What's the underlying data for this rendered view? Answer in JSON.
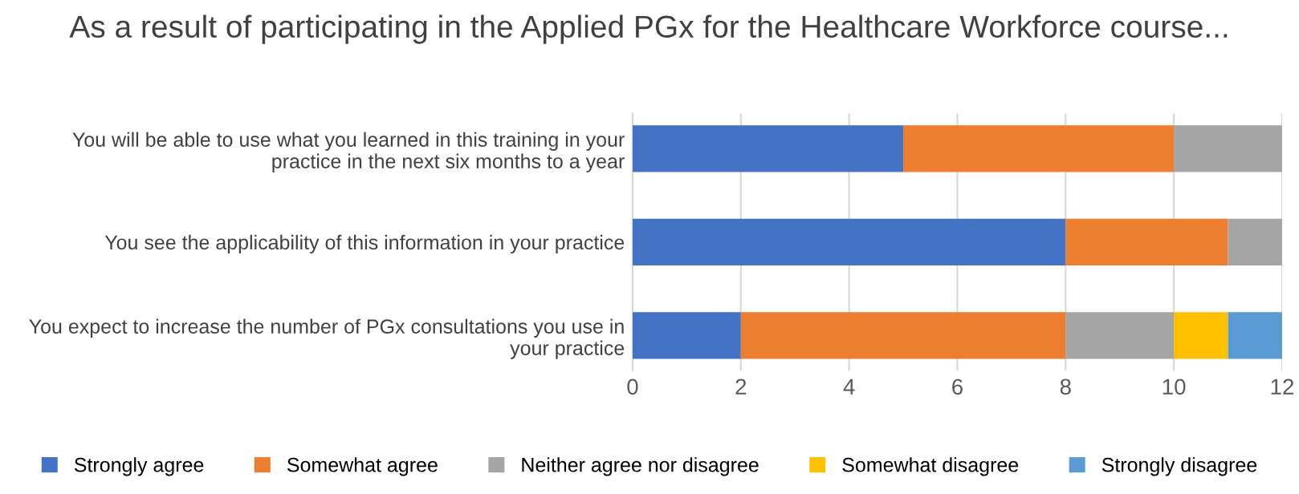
{
  "chart_data": {
    "type": "bar",
    "orientation": "horizontal",
    "stacked": true,
    "title": "As a result of participating in the Applied PGx for the Healthcare Workforce course...",
    "categories": [
      "You will be able to use what you learned in this training in your\npractice in the next six months to a year",
      "You see the applicability of this information in your practice",
      "You expect to increase the number of PGx consultations you use in\nyour practice"
    ],
    "series": [
      {
        "name": "Strongly agree",
        "color": "#4472c4",
        "values": [
          5,
          8,
          2
        ]
      },
      {
        "name": "Somewhat agree",
        "color": "#ed7d31",
        "values": [
          5,
          3,
          6
        ]
      },
      {
        "name": "Neither agree nor disagree",
        "color": "#a5a5a5",
        "values": [
          2,
          1,
          2
        ]
      },
      {
        "name": "Somewhat disagree",
        "color": "#ffc000",
        "values": [
          0,
          0,
          1
        ]
      },
      {
        "name": "Strongly disagree",
        "color": "#5b9bd5",
        "values": [
          0,
          0,
          1
        ]
      }
    ],
    "xlim": [
      0,
      12
    ],
    "xticks": [
      0,
      2,
      4,
      6,
      8,
      10,
      12
    ],
    "grid": "x",
    "legend": "bottom"
  }
}
